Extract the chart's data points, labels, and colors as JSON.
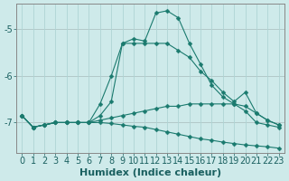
{
  "title": "",
  "xlabel": "Humidex (Indice chaleur)",
  "ylabel": "",
  "bg_color": "#ceeaea",
  "line_color": "#1a7a6e",
  "grid_color_major": "#aed4d4",
  "grid_color_minor": "#c8e8e8",
  "axis_color": "#888888",
  "xlim": [
    -0.5,
    23.5
  ],
  "ylim": [
    -7.65,
    -4.45
  ],
  "yticks": [
    -7,
    -6,
    -5
  ],
  "xticks": [
    0,
    1,
    2,
    3,
    4,
    5,
    6,
    7,
    8,
    9,
    10,
    11,
    12,
    13,
    14,
    15,
    16,
    17,
    18,
    19,
    20,
    21,
    22,
    23
  ],
  "series": [
    {
      "x": [
        0,
        1,
        2,
        3,
        4,
        5,
        6,
        7,
        8,
        9,
        10,
        11,
        12,
        13,
        14,
        15,
        16,
        17,
        18,
        19,
        20,
        21,
        22,
        23
      ],
      "y": [
        -6.85,
        -7.1,
        -7.05,
        -7.0,
        -7.0,
        -7.0,
        -7.0,
        -6.6,
        -6.0,
        -5.3,
        -5.2,
        -5.25,
        -4.65,
        -4.6,
        -4.75,
        -5.3,
        -5.75,
        -6.2,
        -6.45,
        -6.6,
        -6.75,
        -7.0,
        -7.05,
        -7.1
      ]
    },
    {
      "x": [
        0,
        1,
        2,
        3,
        4,
        5,
        6,
        7,
        8,
        9,
        10,
        11,
        12,
        13,
        14,
        15,
        16,
        17,
        18,
        19,
        20,
        21,
        22,
        23
      ],
      "y": [
        -6.85,
        -7.1,
        -7.05,
        -7.0,
        -7.0,
        -7.0,
        -7.0,
        -6.85,
        -6.55,
        -5.3,
        -5.3,
        -5.3,
        -5.3,
        -5.3,
        -5.45,
        -5.6,
        -5.9,
        -6.1,
        -6.35,
        -6.55,
        -6.35,
        -6.8,
        -6.95,
        -7.05
      ]
    },
    {
      "x": [
        0,
        1,
        2,
        3,
        4,
        5,
        6,
        7,
        8,
        9,
        10,
        11,
        12,
        13,
        14,
        15,
        16,
        17,
        18,
        19,
        20,
        21,
        22,
        23
      ],
      "y": [
        -6.85,
        -7.1,
        -7.05,
        -7.0,
        -7.0,
        -7.0,
        -7.0,
        -6.95,
        -6.9,
        -6.85,
        -6.8,
        -6.75,
        -6.7,
        -6.65,
        -6.65,
        -6.6,
        -6.6,
        -6.6,
        -6.6,
        -6.6,
        -6.65,
        -6.8,
        -6.95,
        -7.05
      ]
    },
    {
      "x": [
        0,
        1,
        2,
        3,
        4,
        5,
        6,
        7,
        8,
        9,
        10,
        11,
        12,
        13,
        14,
        15,
        16,
        17,
        18,
        19,
        20,
        21,
        22,
        23
      ],
      "y": [
        -6.85,
        -7.1,
        -7.05,
        -7.0,
        -7.0,
        -7.0,
        -7.0,
        -7.0,
        -7.02,
        -7.05,
        -7.08,
        -7.1,
        -7.15,
        -7.2,
        -7.25,
        -7.3,
        -7.35,
        -7.38,
        -7.42,
        -7.45,
        -7.48,
        -7.5,
        -7.52,
        -7.55
      ]
    }
  ],
  "fontsize_label": 8,
  "fontsize_tick": 7,
  "marker_size": 2.5
}
